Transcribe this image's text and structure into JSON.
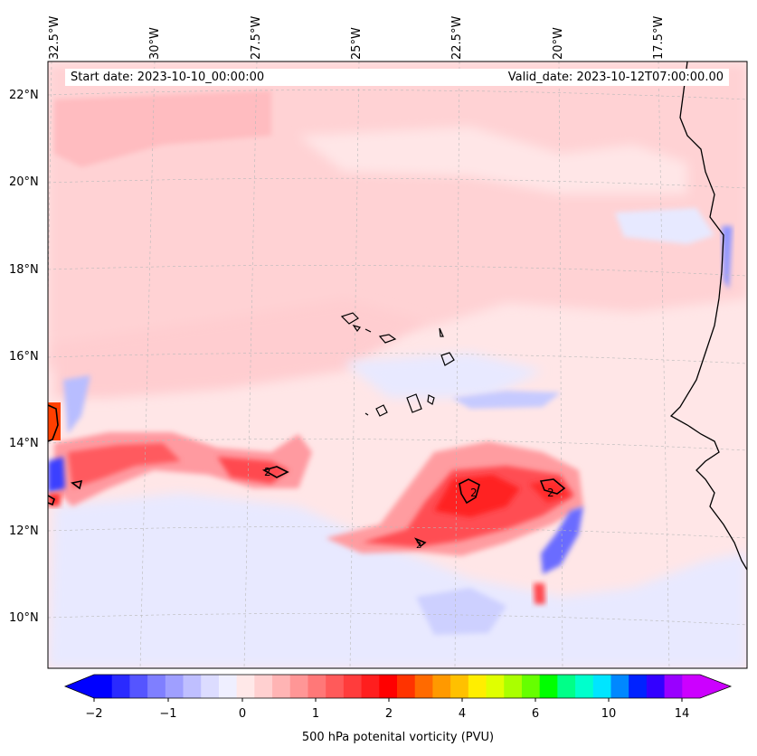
{
  "map": {
    "start_date_text": "Start date: 2023-10-10_00:00:00",
    "valid_date_text": "Valid_date: 2023-10-12T07:00:00.00",
    "lat_labels": [
      "22°N",
      "20°N",
      "18°N",
      "16°N",
      "14°N",
      "12°N",
      "10°N"
    ],
    "lon_labels": [
      "32.5°W",
      "30°W",
      "27.5°W",
      "25°W",
      "22.5°W",
      "20°W",
      "17.5°W"
    ],
    "contour_label": "2",
    "colorbar": {
      "title": "500 hPa potenital vorticity (PVU)",
      "tick_labels": [
        "−2",
        "−1",
        "0",
        "1",
        "2",
        "4",
        "6",
        "10",
        "14"
      ],
      "colors": [
        "#0000ff",
        "#2a2aff",
        "#5555ff",
        "#7f7fff",
        "#9f9fff",
        "#bfbfff",
        "#dcdcff",
        "#efefff",
        "#ffe8e8",
        "#ffd0d0",
        "#ffb4b4",
        "#ff9696",
        "#ff7878",
        "#ff5a5a",
        "#ff3c3c",
        "#ff1e1e",
        "#ff0000",
        "#ff3300",
        "#ff6a00",
        "#ff9900",
        "#ffc000",
        "#ffee00",
        "#e0ff00",
        "#aaff00",
        "#66ff00",
        "#00ff00",
        "#00ff88",
        "#00ffcc",
        "#00e5ff",
        "#0088ff",
        "#0022ff",
        "#3300ff",
        "#9900ff",
        "#cc00ff"
      ]
    },
    "colors": {
      "background_pink": "#ffd2d4",
      "light_pink": "#ffe8e9",
      "pale_blue": "#e8e9ff",
      "blue": "#b8bdff",
      "strong_blue": "#4a4cff",
      "red": "#ff3b3b",
      "deep_red": "#ff1a1a",
      "orange_red": "#ff4a00",
      "coast": "#000000"
    }
  }
}
